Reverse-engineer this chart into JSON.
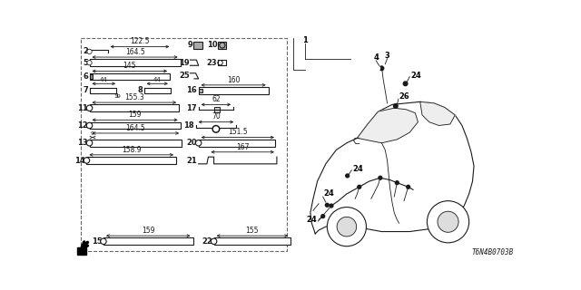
{
  "bg_color": "#ffffff",
  "diagram_code": "T6N4B0703B",
  "fig_w": 6.4,
  "fig_h": 3.2,
  "dpi": 100
}
